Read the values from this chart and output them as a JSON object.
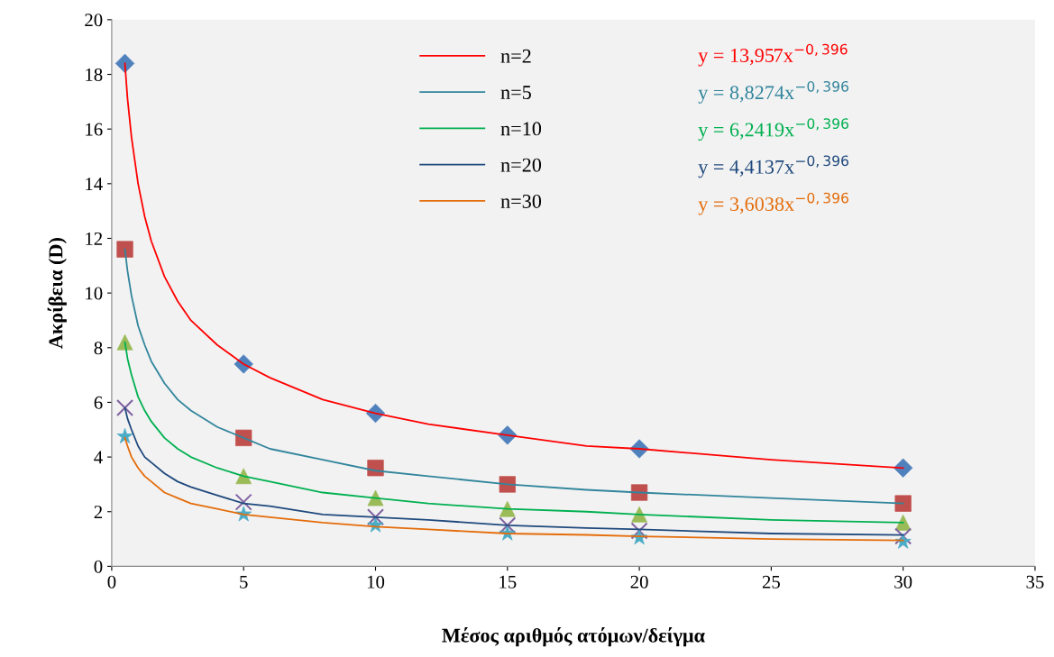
{
  "chart_data": {
    "type": "scatter",
    "xlabel": "Μέσος αριθμός ατόμων/δείγμα",
    "ylabel": "Ακρίβεια (D)",
    "xlim": [
      0,
      35
    ],
    "xticks": [
      0,
      5,
      10,
      15,
      20,
      25,
      30,
      35
    ],
    "ylim": [
      0,
      20
    ],
    "yticks": [
      0,
      2,
      4,
      6,
      8,
      10,
      12,
      14,
      16,
      18,
      20
    ],
    "grid": false,
    "legend": "top",
    "series": [
      {
        "marker": "diamond",
        "color": "#4f81bd",
        "x": [
          0.5,
          5,
          10,
          15,
          20,
          30
        ],
        "values": [
          18.4,
          7.4,
          5.6,
          4.8,
          4.3,
          3.6
        ]
      },
      {
        "marker": "square",
        "color": "#c0504d",
        "x": [
          0.5,
          5,
          10,
          15,
          20,
          30
        ],
        "values": [
          11.6,
          4.7,
          3.6,
          3.0,
          2.7,
          2.3
        ]
      },
      {
        "marker": "triangle",
        "color": "#9bbb59",
        "x": [
          0.5,
          5,
          10,
          15,
          20,
          30
        ],
        "values": [
          8.2,
          3.3,
          2.5,
          2.1,
          1.9,
          1.6
        ]
      },
      {
        "marker": "cross",
        "color": "#8064a2",
        "x": [
          0.5,
          5,
          10,
          15,
          20,
          30
        ],
        "values": [
          5.8,
          2.35,
          1.8,
          1.5,
          1.3,
          1.1
        ]
      },
      {
        "marker": "star",
        "color": "#4bacc6",
        "x": [
          0.5,
          5,
          10,
          15,
          20,
          30
        ],
        "values": [
          4.75,
          1.9,
          1.5,
          1.2,
          1.05,
          0.9
        ]
      },
      {
        "type": "line",
        "name": "n=2",
        "color": "#ff0000",
        "x": [
          0.5,
          0.6,
          0.75,
          1,
          1.25,
          1.5,
          2,
          2.5,
          3,
          4,
          5,
          6,
          8,
          10,
          12,
          15,
          18,
          20,
          25,
          30
        ],
        "values": [
          18.4,
          17.1,
          15.7,
          14.0,
          12.8,
          11.9,
          10.6,
          9.7,
          9.0,
          8.1,
          7.4,
          6.9,
          6.1,
          5.6,
          5.2,
          4.8,
          4.4,
          4.3,
          3.9,
          3.6
        ]
      },
      {
        "type": "line",
        "name": "n=5",
        "color": "#31859c",
        "x": [
          0.5,
          0.6,
          0.75,
          1,
          1.25,
          1.5,
          2,
          2.5,
          3,
          4,
          5,
          6,
          8,
          10,
          12,
          15,
          18,
          20,
          25,
          30
        ],
        "values": [
          11.6,
          10.8,
          9.9,
          8.8,
          8.1,
          7.5,
          6.7,
          6.1,
          5.7,
          5.1,
          4.7,
          4.3,
          3.9,
          3.5,
          3.3,
          3.0,
          2.8,
          2.7,
          2.5,
          2.3
        ]
      },
      {
        "type": "line",
        "name": "n=10",
        "color": "#00b050",
        "x": [
          0.5,
          0.6,
          0.75,
          1,
          1.25,
          1.5,
          2,
          2.5,
          3,
          4,
          5,
          6,
          8,
          10,
          12,
          15,
          18,
          20,
          25,
          30
        ],
        "values": [
          8.2,
          7.6,
          7.0,
          6.2,
          5.7,
          5.3,
          4.7,
          4.3,
          4.0,
          3.6,
          3.3,
          3.1,
          2.7,
          2.5,
          2.3,
          2.1,
          2.0,
          1.9,
          1.7,
          1.6
        ]
      },
      {
        "type": "line",
        "name": "n=20",
        "color": "#1f497d",
        "x": [
          0.5,
          0.6,
          0.75,
          1,
          1.25,
          1.5,
          2,
          2.5,
          3,
          4,
          5,
          6,
          8,
          10,
          12,
          15,
          18,
          20,
          25,
          30
        ],
        "values": [
          5.8,
          5.4,
          5.0,
          4.4,
          4.0,
          3.8,
          3.4,
          3.1,
          2.9,
          2.6,
          2.3,
          2.2,
          1.9,
          1.8,
          1.7,
          1.5,
          1.4,
          1.35,
          1.2,
          1.15
        ]
      },
      {
        "type": "line",
        "name": "n=30",
        "color": "#e46c0a",
        "x": [
          0.5,
          0.6,
          0.75,
          1,
          1.25,
          1.5,
          2,
          2.5,
          3,
          4,
          5,
          6,
          8,
          10,
          12,
          15,
          18,
          20,
          25,
          30
        ],
        "values": [
          4.7,
          4.4,
          4.0,
          3.6,
          3.3,
          3.1,
          2.7,
          2.5,
          2.3,
          2.1,
          1.9,
          1.8,
          1.6,
          1.45,
          1.35,
          1.2,
          1.15,
          1.1,
          1.0,
          0.95
        ]
      }
    ],
    "annotations": [
      "y = 13,957x$^{−0,396}$",
      "y = 8,8274x$^{−0,396}$",
      "y = 6,2419x$^{−0,396}$",
      "y = 4,4137x$^{−0,396}$",
      "y = 3,6038x$^{−0,396}$"
    ]
  }
}
